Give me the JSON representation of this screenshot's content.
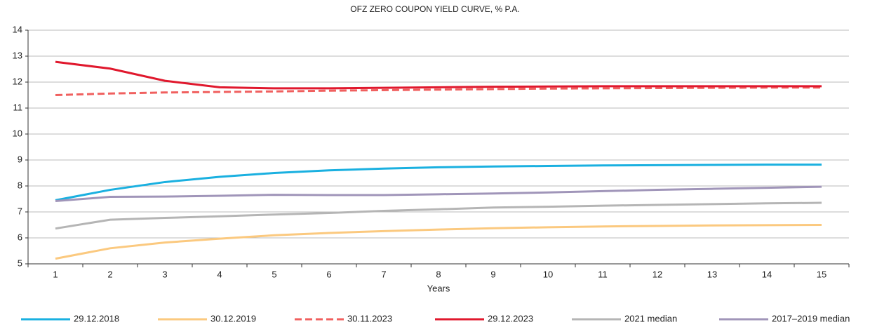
{
  "chart_data": {
    "type": "line",
    "title": "OFZ ZERO COUPON YIELD CURVE, % P.A.",
    "x_label": "Years",
    "categories": [
      "1",
      "2",
      "3",
      "4",
      "5",
      "6",
      "7",
      "8",
      "9",
      "10",
      "11",
      "12",
      "13",
      "14",
      "15"
    ],
    "ylim": [
      5,
      14
    ],
    "yticks": [
      5,
      6,
      7,
      8,
      9,
      10,
      11,
      12,
      13,
      14
    ],
    "grid": true,
    "legend": "bottom",
    "series": [
      {
        "name": "29.12.2018",
        "color": "#1ab0e0",
        "style": "solid",
        "values": [
          7.45,
          7.85,
          8.15,
          8.35,
          8.5,
          8.6,
          8.67,
          8.72,
          8.75,
          8.77,
          8.79,
          8.8,
          8.81,
          8.82,
          8.82
        ]
      },
      {
        "name": "30.12.2019",
        "color": "#fbc97f",
        "style": "solid",
        "values": [
          5.2,
          5.6,
          5.82,
          5.97,
          6.1,
          6.19,
          6.26,
          6.32,
          6.37,
          6.41,
          6.44,
          6.46,
          6.48,
          6.49,
          6.5
        ]
      },
      {
        "name": "30.11.2023",
        "color": "#f0605f",
        "style": "dashed",
        "values": [
          11.5,
          11.56,
          11.6,
          11.62,
          11.64,
          11.67,
          11.69,
          11.71,
          11.73,
          11.75,
          11.76,
          11.77,
          11.78,
          11.79,
          11.79
        ]
      },
      {
        "name": "29.12.2023",
        "color": "#e0182d",
        "style": "solid",
        "values": [
          12.78,
          12.52,
          12.05,
          11.8,
          11.76,
          11.76,
          11.78,
          11.8,
          11.82,
          11.83,
          11.84,
          11.84,
          11.84,
          11.84,
          11.84
        ]
      },
      {
        "name": "2021 median",
        "color": "#b5b5b5",
        "style": "solid",
        "values": [
          6.36,
          6.7,
          6.77,
          6.83,
          6.9,
          6.96,
          7.04,
          7.1,
          7.17,
          7.2,
          7.24,
          7.27,
          7.3,
          7.33,
          7.35
        ]
      },
      {
        "name": "2017–2019 median",
        "color": "#a095b9",
        "style": "solid",
        "values": [
          7.42,
          7.58,
          7.59,
          7.62,
          7.66,
          7.65,
          7.65,
          7.68,
          7.71,
          7.75,
          7.8,
          7.85,
          7.89,
          7.93,
          7.97
        ]
      }
    ]
  }
}
